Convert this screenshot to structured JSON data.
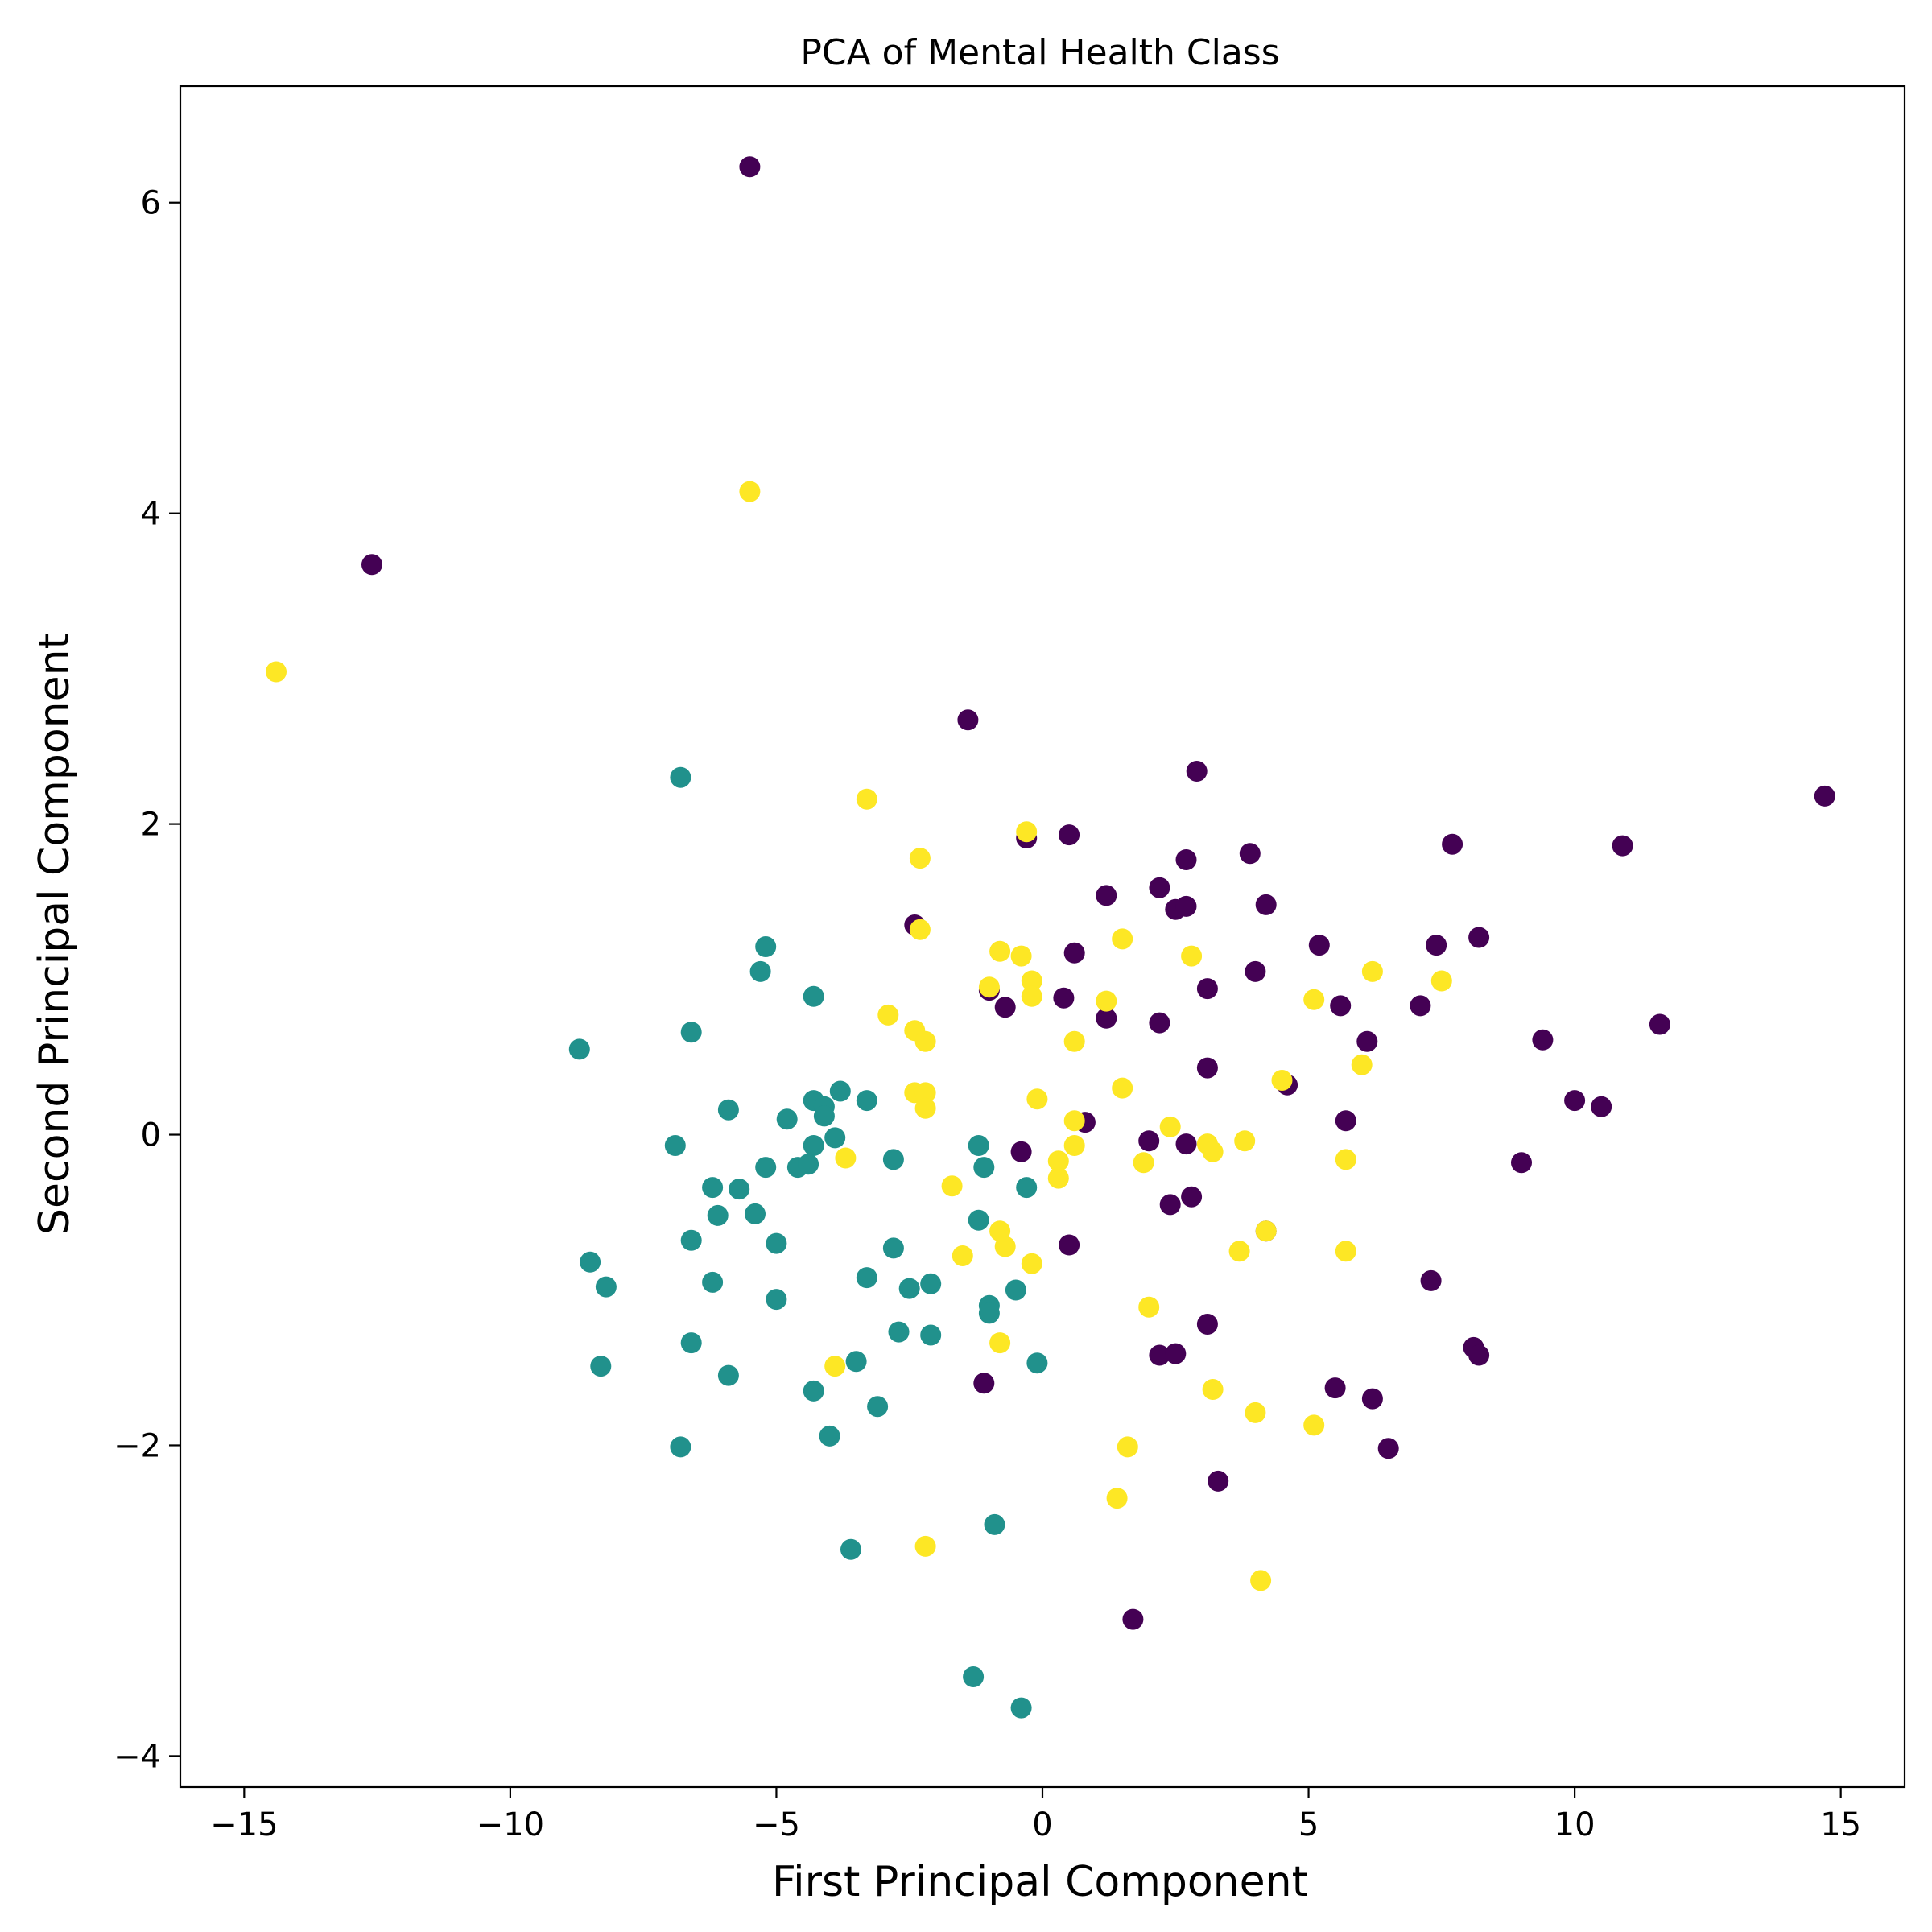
{
  "chart_data": {
    "type": "scatter",
    "title": "PCA of Mental Health Class",
    "xlabel": "First Principal Component",
    "ylabel": "Second Principal Component",
    "xlim": [
      -16.2,
      16.2
    ],
    "ylim": [
      -4.2,
      6.75
    ],
    "xticks": [
      -15,
      -10,
      -5,
      0,
      5,
      10,
      15
    ],
    "xtick_labels": [
      "−15",
      "−10",
      "−5",
      "0",
      "5",
      "10",
      "15"
    ],
    "yticks": [
      -4,
      -2,
      0,
      2,
      4,
      6
    ],
    "ytick_labels": [
      "−4",
      "−2",
      "0",
      "2",
      "4",
      "6"
    ],
    "grid": false,
    "colors": {
      "purple": "#440154",
      "teal": "#21918c",
      "yellow": "#fde725"
    },
    "series": [
      {
        "color": "#440154",
        "points": [
          [
            -5.5,
            6.23
          ],
          [
            -12.6,
            3.67
          ],
          [
            -1.4,
            2.67
          ],
          [
            2.9,
            2.34
          ],
          [
            14.7,
            2.18
          ],
          [
            -0.3,
            1.91
          ],
          [
            0.5,
            1.93
          ],
          [
            2.7,
            1.77
          ],
          [
            3.9,
            1.81
          ],
          [
            7.7,
            1.87
          ],
          [
            10.9,
            1.86
          ],
          [
            1.2,
            1.54
          ],
          [
            2.2,
            1.59
          ],
          [
            2.5,
            1.45
          ],
          [
            2.7,
            1.47
          ],
          [
            4.2,
            1.48
          ],
          [
            -2.4,
            1.35
          ],
          [
            0.6,
            1.17
          ],
          [
            5.2,
            1.22
          ],
          [
            7.4,
            1.22
          ],
          [
            8.2,
            1.27
          ],
          [
            4.0,
            1.05
          ],
          [
            3.1,
            0.94
          ],
          [
            -1.0,
            0.93
          ],
          [
            0.4,
            0.88
          ],
          [
            -0.7,
            0.82
          ],
          [
            5.6,
            0.83
          ],
          [
            7.1,
            0.83
          ],
          [
            1.2,
            0.75
          ],
          [
            2.2,
            0.72
          ],
          [
            11.6,
            0.71
          ],
          [
            6.1,
            0.6
          ],
          [
            9.4,
            0.61
          ],
          [
            3.1,
            0.43
          ],
          [
            4.6,
            0.32
          ],
          [
            10.0,
            0.22
          ],
          [
            10.5,
            0.18
          ],
          [
            0.8,
            0.08
          ],
          [
            5.7,
            0.09
          ],
          [
            2.0,
            -0.04
          ],
          [
            2.7,
            -0.06
          ],
          [
            -0.4,
            -0.11
          ],
          [
            9.0,
            -0.18
          ],
          [
            2.4,
            -0.45
          ],
          [
            2.8,
            -0.4
          ],
          [
            4.2,
            -0.62
          ],
          [
            0.5,
            -0.71
          ],
          [
            7.3,
            -0.94
          ],
          [
            3.1,
            -1.22
          ],
          [
            8.1,
            -1.37
          ],
          [
            8.2,
            -1.42
          ],
          [
            2.2,
            -1.42
          ],
          [
            2.5,
            -1.41
          ],
          [
            -1.1,
            -1.6
          ],
          [
            5.5,
            -1.63
          ],
          [
            6.2,
            -1.7
          ],
          [
            6.5,
            -2.02
          ],
          [
            3.3,
            -2.23
          ],
          [
            1.7,
            -3.12
          ]
        ]
      },
      {
        "color": "#21918c",
        "points": [
          [
            -6.8,
            2.3
          ],
          [
            -5.2,
            1.21
          ],
          [
            -5.3,
            1.05
          ],
          [
            -4.3,
            0.89
          ],
          [
            -6.6,
            0.66
          ],
          [
            -8.7,
            0.55
          ],
          [
            -3.8,
            0.28
          ],
          [
            -4.3,
            0.22
          ],
          [
            -4.1,
            0.18
          ],
          [
            -3.3,
            0.22
          ],
          [
            -5.9,
            0.16
          ],
          [
            -4.1,
            0.12
          ],
          [
            -4.8,
            0.1
          ],
          [
            -3.9,
            -0.02
          ],
          [
            -6.9,
            -0.07
          ],
          [
            -4.3,
            -0.07
          ],
          [
            -1.2,
            -0.07
          ],
          [
            -2.8,
            -0.16
          ],
          [
            -4.6,
            -0.21
          ],
          [
            -4.4,
            -0.19
          ],
          [
            -5.2,
            -0.21
          ],
          [
            -1.1,
            -0.21
          ],
          [
            -6.2,
            -0.34
          ],
          [
            -5.7,
            -0.35
          ],
          [
            -0.3,
            -0.34
          ],
          [
            -6.1,
            -0.52
          ],
          [
            -5.4,
            -0.51
          ],
          [
            -6.6,
            -0.68
          ],
          [
            -5.0,
            -0.7
          ],
          [
            -2.8,
            -0.73
          ],
          [
            -1.2,
            -0.55
          ],
          [
            -8.5,
            -0.82
          ],
          [
            -3.3,
            -0.92
          ],
          [
            -8.2,
            -0.98
          ],
          [
            -6.2,
            -0.95
          ],
          [
            -2.5,
            -0.99
          ],
          [
            -2.1,
            -0.96
          ],
          [
            -0.5,
            -1.0
          ],
          [
            -5.0,
            -1.06
          ],
          [
            -1.0,
            -1.1
          ],
          [
            -1.0,
            -1.15
          ],
          [
            -2.7,
            -1.27
          ],
          [
            -2.1,
            -1.29
          ],
          [
            -6.6,
            -1.34
          ],
          [
            -8.3,
            -1.49
          ],
          [
            -3.5,
            -1.46
          ],
          [
            -0.1,
            -1.47
          ],
          [
            -5.9,
            -1.55
          ],
          [
            -4.3,
            -1.65
          ],
          [
            -3.1,
            -1.75
          ],
          [
            -4.0,
            -1.94
          ],
          [
            -6.8,
            -2.01
          ],
          [
            -0.9,
            -2.51
          ],
          [
            -3.6,
            -2.67
          ],
          [
            -1.3,
            -3.49
          ],
          [
            -0.4,
            -3.69
          ]
        ]
      },
      {
        "color": "#fde725",
        "points": [
          [
            -5.5,
            4.14
          ],
          [
            -14.4,
            2.98
          ],
          [
            -3.3,
            2.16
          ],
          [
            -0.3,
            1.95
          ],
          [
            -2.3,
            1.78
          ],
          [
            -2.3,
            1.32
          ],
          [
            1.5,
            1.26
          ],
          [
            -0.8,
            1.18
          ],
          [
            -0.4,
            1.15
          ],
          [
            2.8,
            1.15
          ],
          [
            6.2,
            1.05
          ],
          [
            7.5,
            0.99
          ],
          [
            -0.2,
            0.99
          ],
          [
            -1.0,
            0.95
          ],
          [
            -0.2,
            0.89
          ],
          [
            1.2,
            0.86
          ],
          [
            5.1,
            0.87
          ],
          [
            -2.9,
            0.77
          ],
          [
            -2.4,
            0.67
          ],
          [
            -2.2,
            0.6
          ],
          [
            0.6,
            0.6
          ],
          [
            6.0,
            0.45
          ],
          [
            4.5,
            0.35
          ],
          [
            1.5,
            0.3
          ],
          [
            -2.4,
            0.27
          ],
          [
            -2.2,
            0.27
          ],
          [
            -0.1,
            0.23
          ],
          [
            -2.2,
            0.17
          ],
          [
            0.6,
            0.09
          ],
          [
            2.4,
            0.05
          ],
          [
            3.1,
            -0.06
          ],
          [
            3.8,
            -0.04
          ],
          [
            3.2,
            -0.11
          ],
          [
            0.6,
            -0.07
          ],
          [
            0.3,
            -0.17
          ],
          [
            -3.7,
            -0.15
          ],
          [
            5.7,
            -0.16
          ],
          [
            1.9,
            -0.18
          ],
          [
            0.3,
            -0.28
          ],
          [
            -1.7,
            -0.33
          ],
          [
            4.2,
            -0.62
          ],
          [
            -0.8,
            -0.62
          ],
          [
            -0.7,
            -0.72
          ],
          [
            3.7,
            -0.75
          ],
          [
            5.7,
            -0.75
          ],
          [
            -1.5,
            -0.78
          ],
          [
            -0.2,
            -0.83
          ],
          [
            2.0,
            -1.11
          ],
          [
            -0.8,
            -1.34
          ],
          [
            -3.9,
            -1.49
          ],
          [
            3.2,
            -1.64
          ],
          [
            4.0,
            -1.79
          ],
          [
            5.1,
            -1.87
          ],
          [
            1.6,
            -2.01
          ],
          [
            1.4,
            -2.34
          ],
          [
            -2.2,
            -2.65
          ],
          [
            4.1,
            -2.87
          ]
        ]
      }
    ]
  }
}
